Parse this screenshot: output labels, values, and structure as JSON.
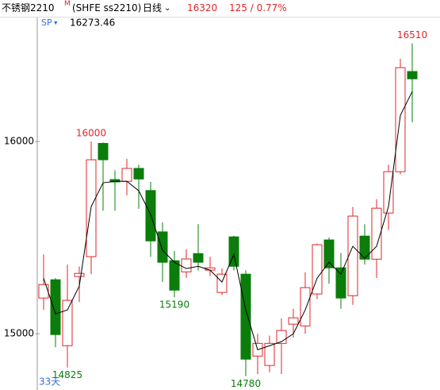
{
  "header": {
    "name": "不锈钢2210",
    "tag": "M",
    "code": "(SHFE ss2210)",
    "period": "日线",
    "price": "16320",
    "change": "125 / 0.77%",
    "sp_label": "SP",
    "sp_value": "16273.46",
    "count": "33天"
  },
  "chart_data": {
    "type": "candlestick",
    "up_color": "#e0262a",
    "down_color": "#0a7d0a",
    "ma_color": "#000000",
    "ylim": [
      14720,
      16645
    ],
    "yticks": [
      15000,
      16000
    ],
    "candles": [
      {
        "open": 15186,
        "close": 15256,
        "high": 15413,
        "low": 15124
      },
      {
        "open": 15281,
        "close": 14996,
        "high": 15290,
        "low": 14930
      },
      {
        "open": 14938,
        "close": 15174,
        "high": 15360,
        "low": 14825
      },
      {
        "open": 15298,
        "close": 15314,
        "high": 15350,
        "low": 15165
      },
      {
        "open": 15401,
        "close": 15905,
        "high": 16000,
        "low": 15310
      },
      {
        "open": 15990,
        "close": 15905,
        "high": 15995,
        "low": 15640
      },
      {
        "open": 15802,
        "close": 15790,
        "high": 15850,
        "low": 15640
      },
      {
        "open": 15793,
        "close": 15860,
        "high": 15910,
        "low": 15720
      },
      {
        "open": 15860,
        "close": 15805,
        "high": 15880,
        "low": 15650
      },
      {
        "open": 15745,
        "close": 15483,
        "high": 15790,
        "low": 15400
      },
      {
        "open": 15530,
        "close": 15372,
        "high": 15580,
        "low": 15270
      },
      {
        "open": 15380,
        "close": 15227,
        "high": 15430,
        "low": 15190
      },
      {
        "open": 15322,
        "close": 15389,
        "high": 15440,
        "low": 15290
      },
      {
        "open": 15417,
        "close": 15372,
        "high": 15570,
        "low": 15330
      },
      {
        "open": 15331,
        "close": 15343,
        "high": 15400,
        "low": 15300
      },
      {
        "open": 15215,
        "close": 15310,
        "high": 15340,
        "low": 15200
      },
      {
        "open": 15504,
        "close": 15351,
        "high": 15510,
        "low": 15330
      },
      {
        "open": 15310,
        "close": 14868,
        "high": 15330,
        "low": 14780
      },
      {
        "open": 14884,
        "close": 14950,
        "high": 15000,
        "low": 14790
      },
      {
        "open": 14835,
        "close": 14950,
        "high": 14990,
        "low": 14800
      },
      {
        "open": 14950,
        "close": 15017,
        "high": 15080,
        "low": 14790
      },
      {
        "open": 15050,
        "close": 15083,
        "high": 15130,
        "low": 14980
      },
      {
        "open": 15041,
        "close": 15240,
        "high": 15320,
        "low": 15000
      },
      {
        "open": 15207,
        "close": 15463,
        "high": 15470,
        "low": 15180
      },
      {
        "open": 15488,
        "close": 15343,
        "high": 15500,
        "low": 15260
      },
      {
        "open": 15343,
        "close": 15186,
        "high": 15420,
        "low": 15130
      },
      {
        "open": 15198,
        "close": 15612,
        "high": 15660,
        "low": 15150
      },
      {
        "open": 15508,
        "close": 15388,
        "high": 15570,
        "low": 15360
      },
      {
        "open": 15388,
        "close": 15653,
        "high": 15700,
        "low": 15290
      },
      {
        "open": 15628,
        "close": 15843,
        "high": 15880,
        "low": 15540
      },
      {
        "open": 15843,
        "close": 16384,
        "high": 16430,
        "low": 15830
      },
      {
        "open": 16364,
        "close": 16326,
        "high": 16510,
        "low": 16100
      }
    ],
    "ma": [
      15289,
      15103,
      15124,
      15248,
      15661,
      15785,
      15793,
      15793,
      15744,
      15620,
      15434,
      15372,
      15339,
      15351,
      15331,
      15269,
      15413,
      15124,
      14917,
      14938,
      14959,
      15000,
      15124,
      15289,
      15372,
      15310,
      15455,
      15393,
      15455,
      15661,
      16136,
      16260
    ],
    "peaks": [
      16000,
      16510
    ],
    "troughs": [
      14825,
      15190,
      14780
    ]
  }
}
